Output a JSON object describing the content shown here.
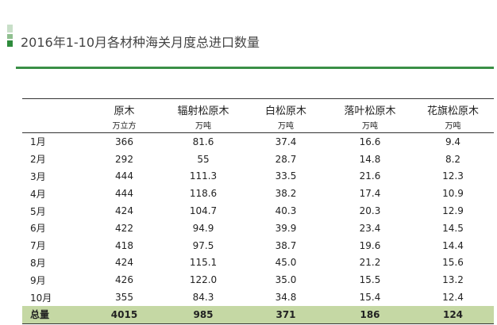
{
  "title": "2016年1-10月各材种海关月度总进口数量",
  "headers": [
    {
      "name": "原木",
      "unit": "万立方"
    },
    {
      "name": "辐射松原木",
      "unit": "万吨"
    },
    {
      "name": "白松原木",
      "unit": "万吨"
    },
    {
      "name": "落叶松原木",
      "unit": "万吨"
    },
    {
      "name": "花旗松原木",
      "unit": "万吨"
    }
  ],
  "rows": [
    {
      "month": "1月",
      "v": [
        "366",
        "81.6",
        "37.4",
        "16.6",
        "9.4"
      ]
    },
    {
      "month": "2月",
      "v": [
        "292",
        "55",
        "28.7",
        "14.8",
        "8.2"
      ]
    },
    {
      "month": "3月",
      "v": [
        "444",
        "111.3",
        "33.5",
        "21.6",
        "12.3"
      ]
    },
    {
      "month": "4月",
      "v": [
        "444",
        "118.6",
        "38.2",
        "17.4",
        "10.9"
      ]
    },
    {
      "month": "5月",
      "v": [
        "424",
        "104.7",
        "40.3",
        "20.3",
        "12.9"
      ]
    },
    {
      "month": "6月",
      "v": [
        "422",
        "94.9",
        "39.9",
        "23.4",
        "14.5"
      ]
    },
    {
      "month": "7月",
      "v": [
        "418",
        "97.5",
        "38.7",
        "19.6",
        "14.4"
      ]
    },
    {
      "month": "8月",
      "v": [
        "424",
        "115.1",
        "45.0",
        "21.2",
        "15.6"
      ]
    },
    {
      "month": "9月",
      "v": [
        "426",
        "122.0",
        "35.0",
        "15.5",
        "13.2"
      ]
    },
    {
      "month": "10月",
      "v": [
        "355",
        "84.3",
        "34.8",
        "15.4",
        "12.4"
      ]
    }
  ],
  "total": {
    "label": "总量",
    "v": [
      "4015",
      "985",
      "371",
      "186",
      "124"
    ]
  }
}
